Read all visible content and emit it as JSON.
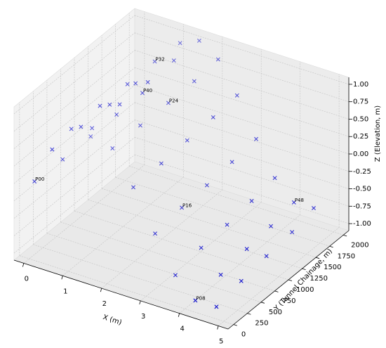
{
  "chart_data": {
    "type": "scatter3d",
    "xlabel": "X (m)",
    "ylabel": "Y (Tunnel Chainage, m)",
    "zlabel": "Z (Elevation, m)",
    "color": "#0000cc",
    "grid": true,
    "xlim": [
      -0.25,
      5.25
    ],
    "ylim": [
      -100,
      2100
    ],
    "zlim": [
      -1.1,
      1.1
    ],
    "xticks": [
      0,
      1,
      2,
      3,
      4,
      5
    ],
    "yticks": [
      0,
      250,
      500,
      750,
      1000,
      1250,
      1500,
      1750,
      2000
    ],
    "zticks": [
      {
        "value": -1,
        "label": "-1.00"
      },
      {
        "value": -0.75,
        "label": "-0.75"
      },
      {
        "value": -0.5,
        "label": "-0.50"
      },
      {
        "value": -0.25,
        "label": "-0.25"
      },
      {
        "value": 0,
        "label": "0.00"
      },
      {
        "value": 0.25,
        "label": "0.25"
      },
      {
        "value": 0.5,
        "label": "0.50"
      },
      {
        "value": 0.75,
        "label": "0.75"
      },
      {
        "value": 1,
        "label": "1.00"
      }
    ],
    "x": [
      0.08,
      0.47,
      0.1,
      0.36,
      0.49,
      0.33,
      0.1,
      0.76,
      0.91,
      1.09,
      0.87,
      0.77,
      1.17,
      1.3,
      1.5,
      1.25,
      1.16,
      1.49,
      1.21,
      1.51,
      2.28,
      1.94,
      1.56,
      1.16,
      2.01,
      1.64,
      2.36,
      2.71,
      3.05,
      3.6,
      3.28,
      2.95,
      2.6,
      2.3,
      3.47,
      3.22,
      4.16,
      4.69,
      4.44,
      4.96,
      3.82,
      4.73,
      4.86,
      4.66,
      4.13,
      4.43,
      4.79,
      4.94,
      5.04
    ],
    "y": [
      39,
      84,
      537,
      512,
      595,
      910,
      1049,
      750,
      820,
      875,
      975,
      971,
      960,
      1015,
      1097,
      1176,
      1465,
      1579,
      1891,
      2027,
      1825,
      1631,
      1429,
      1202,
      981,
      734,
      1205,
      1430,
      1624,
      1582,
      1369,
      1146,
      936,
      663,
      672,
      380,
      77,
      85,
      341,
      346,
      896,
      610,
      876,
      1099,
      1124,
      1333,
      1392,
      1320,
      1609
    ],
    "z": [
      0,
      0.5,
      0,
      0.5,
      0.5,
      0.25,
      0,
      0.75,
      0.75,
      0.75,
      0.5,
      0,
      1,
      1,
      1,
      0.75,
      1,
      1,
      1,
      1,
      1,
      0.75,
      0.5,
      0.25,
      0,
      -0.25,
      0.25,
      0.5,
      0.75,
      0.25,
      0,
      -0.25,
      -0.5,
      -0.75,
      -0.75,
      -1,
      -1,
      -1,
      -0.75,
      -0.75,
      -0.5,
      -0.5,
      -0.75,
      -0.5,
      -0.25,
      0,
      -0.75,
      -0.25,
      -0.5
    ],
    "labels": [
      "P00",
      null,
      null,
      null,
      null,
      null,
      null,
      null,
      null,
      null,
      null,
      null,
      null,
      null,
      null,
      "P40",
      "P32",
      null,
      null,
      null,
      null,
      null,
      "P24",
      null,
      null,
      null,
      null,
      null,
      null,
      null,
      null,
      null,
      "P16",
      null,
      null,
      null,
      "P08",
      null,
      null,
      null,
      null,
      null,
      null,
      null,
      null,
      null,
      null,
      "P48",
      null
    ]
  }
}
